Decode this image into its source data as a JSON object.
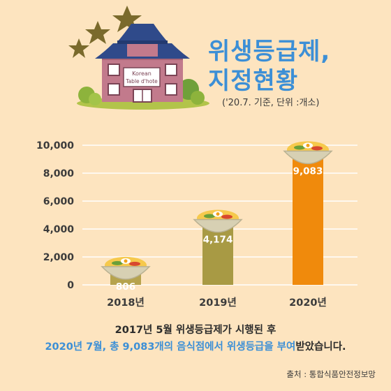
{
  "title_line1": "위생등급제,",
  "title_line2": "지정현황",
  "unit_note": "('20.7. 기준, 단위 :개소)",
  "sign_line1": "Korean",
  "sign_line2": "Table d'hote",
  "colors": {
    "background": "#fde4bf",
    "title_blue": "#3c8fd6",
    "bar_olive_light": "#b6a34e",
    "bar_olive": "#a89a44",
    "bar_orange": "#f08a0c",
    "grid": "#ffffff"
  },
  "chart_data": {
    "type": "bar",
    "categories": [
      "2018년",
      "2019년",
      "2020년"
    ],
    "values": [
      806,
      4174,
      9083
    ],
    "value_labels": [
      "806",
      "4,174",
      "9,083"
    ],
    "yticks": [
      "0",
      "2,000",
      "4,000",
      "6,000",
      "8,000",
      "10,000"
    ],
    "ylim": [
      0,
      10000
    ],
    "grid": true,
    "title": "",
    "xlabel": "",
    "ylabel": ""
  },
  "caption_line1": "2017년 5월 위생등급제가 시행된 후",
  "caption_line2_highlight": "2020년 7월, 총 9,083개의 음식점에서 위생등급을 부여",
  "caption_line2_rest": "받았습니다.",
  "source": "출처 : 통합식품안전정보망"
}
